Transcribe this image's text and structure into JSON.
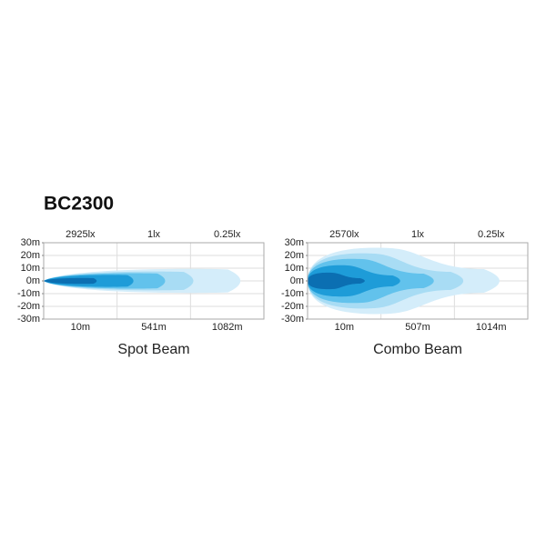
{
  "title": "BC2300",
  "panels": [
    {
      "lux_labels": [
        "2925lx",
        "1lx",
        "0.25lx"
      ],
      "y_labels": [
        "30m",
        "20m",
        "10m",
        "0m",
        "-10m",
        "-20m",
        "-30m"
      ],
      "distance_labels": [
        "10m",
        "541m",
        "1082m"
      ],
      "caption": "Spot Beam"
    },
    {
      "lux_labels": [
        "2570lx",
        "1lx",
        "0.25lx"
      ],
      "y_labels": [
        "30m",
        "20m",
        "10m",
        "0m",
        "-10m",
        "-20m",
        "-30m"
      ],
      "distance_labels": [
        "10m",
        "507m",
        "1014m"
      ],
      "caption": "Combo Beam"
    }
  ]
}
